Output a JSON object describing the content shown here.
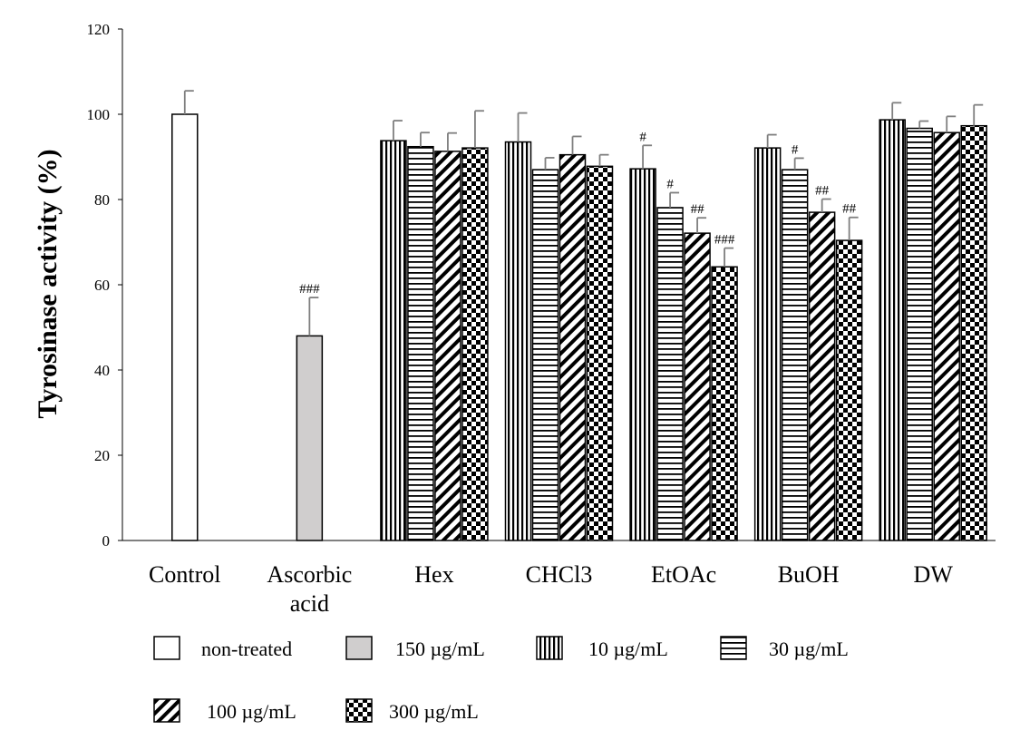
{
  "chart_data": {
    "type": "bar",
    "title": "",
    "xlabel": "",
    "ylabel": "Tyrosinase  activity (%)",
    "ylim": [
      0,
      120
    ],
    "yticks": [
      0,
      20,
      40,
      60,
      80,
      100,
      120
    ],
    "grid": false,
    "legend_position": "bottom",
    "categories": [
      "Control",
      "Ascorbic acid",
      "Hex",
      "CHCl3",
      "EtOAc",
      "BuOH",
      "DW"
    ],
    "category_label_lines": [
      [
        "Control"
      ],
      [
        "Ascorbic",
        "acid"
      ],
      [
        "Hex"
      ],
      [
        "CHCl3"
      ],
      [
        "EtOAc"
      ],
      [
        "BuOH"
      ],
      [
        "DW"
      ]
    ],
    "series": [
      {
        "name": "non-treated",
        "pattern": "none",
        "color": "#ffffff",
        "values": [
          100,
          null,
          null,
          null,
          null,
          null,
          null
        ],
        "errors": [
          5.5,
          null,
          null,
          null,
          null,
          null,
          null
        ],
        "significance": [
          "",
          "",
          "",
          "",
          "",
          "",
          ""
        ]
      },
      {
        "name": "150 µg/mL",
        "pattern": "solid",
        "color": "#d0cece",
        "values": [
          null,
          48,
          null,
          null,
          null,
          null,
          null
        ],
        "errors": [
          null,
          9,
          null,
          null,
          null,
          null,
          null
        ],
        "significance": [
          "",
          "###",
          "",
          "",
          "",
          "",
          ""
        ]
      },
      {
        "name": "10 µg/mL",
        "pattern": "vertical-lines",
        "color": "#ffffff",
        "values": [
          null,
          null,
          93.8,
          93.5,
          87.2,
          92.1,
          98.7
        ],
        "errors": [
          null,
          null,
          4.7,
          6.8,
          5.5,
          3.1,
          4.0
        ],
        "significance": [
          "",
          "",
          "",
          "",
          "#",
          "",
          ""
        ]
      },
      {
        "name": "30 µg/mL",
        "pattern": "horizontal-lines",
        "color": "#ffffff",
        "values": [
          null,
          null,
          92.4,
          87,
          78.1,
          87,
          96.7
        ],
        "errors": [
          null,
          null,
          3.3,
          2.8,
          3.5,
          2.7,
          1.7
        ],
        "significance": [
          "",
          "",
          "",
          "",
          "#",
          "#",
          ""
        ]
      },
      {
        "name": "100 µg/mL",
        "pattern": "diagonal-lines",
        "color": "#ffffff",
        "values": [
          null,
          null,
          91.3,
          90.5,
          72.1,
          77,
          95.7
        ],
        "errors": [
          null,
          null,
          4.3,
          4.3,
          3.6,
          3.1,
          3.8
        ],
        "significance": [
          "",
          "",
          "",
          "",
          "##",
          "##",
          ""
        ]
      },
      {
        "name": "300 µg/mL",
        "pattern": "checkerboard",
        "color": "#ffffff",
        "values": [
          null,
          null,
          92.1,
          87.8,
          64.2,
          70.4,
          97.3
        ],
        "errors": [
          null,
          null,
          8.7,
          2.7,
          4.4,
          5.4,
          4.9
        ],
        "significance": [
          "",
          "",
          "",
          "",
          "###",
          "##",
          ""
        ]
      }
    ]
  }
}
